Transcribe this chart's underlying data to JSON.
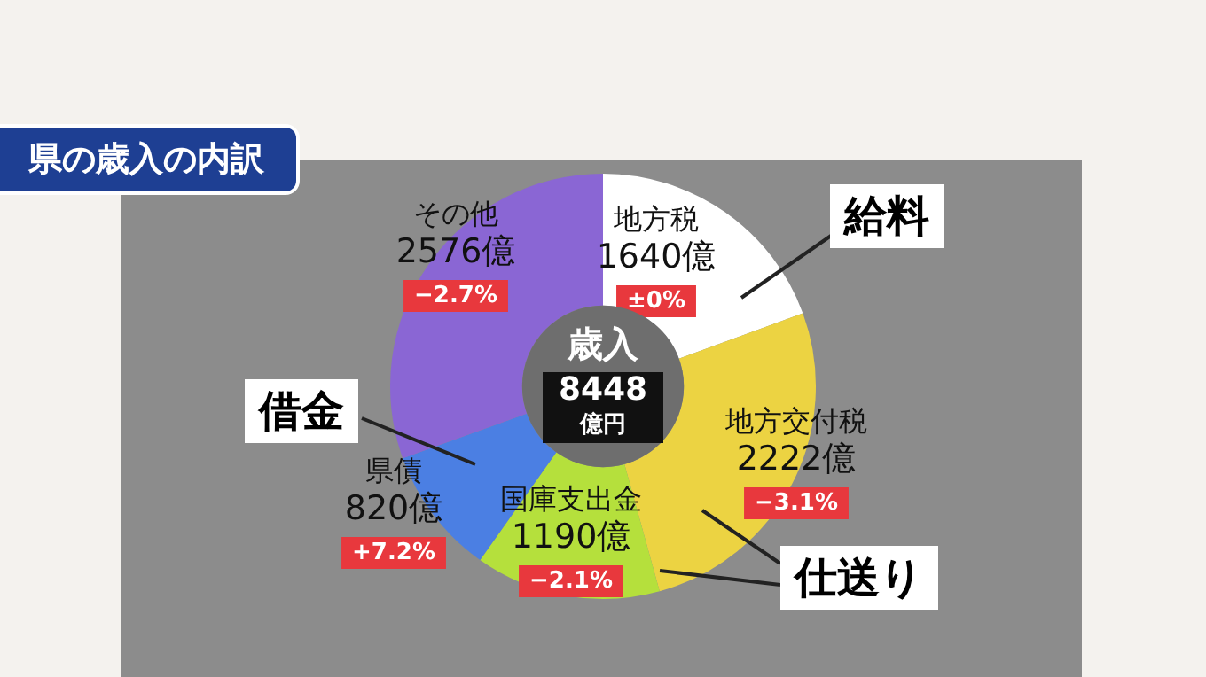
{
  "chart_data": {
    "type": "donut",
    "title": "県の歳入の内訳",
    "categories": [
      "地方税",
      "地方交付税",
      "国庫支出金",
      "県債",
      "その他"
    ],
    "values": [
      1640,
      2222,
      1190,
      820,
      2576
    ],
    "colors": [
      "#ffffff",
      "#ecd342",
      "#b5e03c",
      "#4b7fe3",
      "#8a66d4"
    ],
    "value_labels": [
      "1640億",
      "2222億",
      "1190億",
      "820億",
      "2576億"
    ],
    "legend": false,
    "annotations": [
      {
        "text": "±0%",
        "x": "地方税"
      },
      {
        "text": "−3.1%",
        "x": "地方交付税"
      },
      {
        "text": "−2.1%",
        "x": "国庫支出金"
      },
      {
        "text": "+7.2%",
        "x": "県債"
      },
      {
        "text": "−2.7%",
        "x": "その他"
      },
      "歳入",
      "8448",
      "億円",
      "給料",
      "借金",
      "仕送り"
    ]
  }
}
